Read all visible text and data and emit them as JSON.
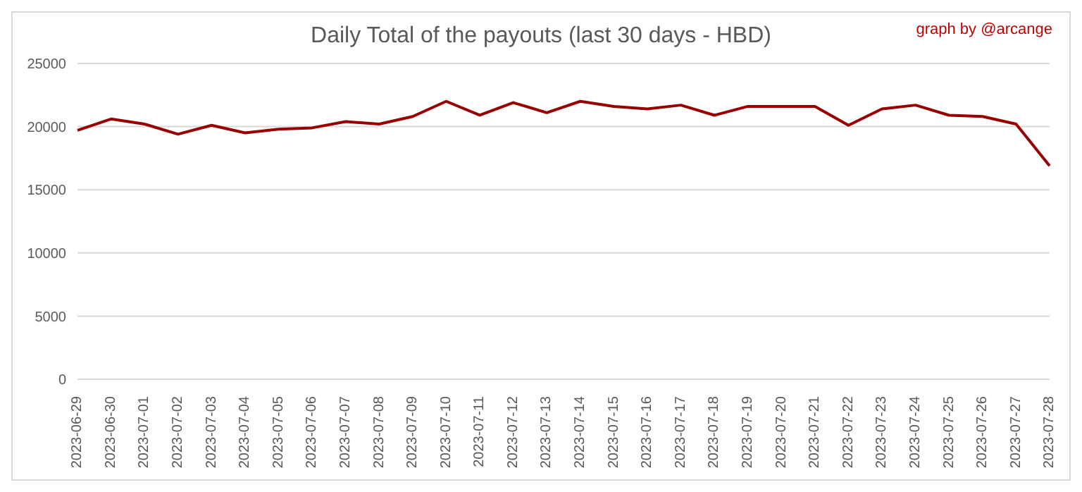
{
  "chart_data": {
    "type": "line",
    "title": "Daily Total of the payouts (last 30 days - HBD)",
    "annotations": [
      "graph by @arcange"
    ],
    "categories": [
      "2023-06-29",
      "2023-06-30",
      "2023-07-01",
      "2023-07-02",
      "2023-07-03",
      "2023-07-04",
      "2023-07-05",
      "2023-07-06",
      "2023-07-07",
      "2023-07-08",
      "2023-07-09",
      "2023-07-10",
      "2023-07-11",
      "2023-07-12",
      "2023-07-13",
      "2023-07-14",
      "2023-07-15",
      "2023-07-16",
      "2023-07-17",
      "2023-07-18",
      "2023-07-19",
      "2023-07-20",
      "2023-07-21",
      "2023-07-22",
      "2023-07-23",
      "2023-07-24",
      "2023-07-25",
      "2023-07-26",
      "2023-07-27",
      "2023-07-28"
    ],
    "series": [
      {
        "color": "#990000",
        "values": [
          19700,
          20600,
          20200,
          19400,
          20100,
          19500,
          19800,
          19900,
          20400,
          20200,
          20800,
          22000,
          20900,
          21900,
          21100,
          22000,
          21600,
          21400,
          21700,
          20900,
          21600,
          21600,
          21600,
          20100,
          21400,
          21700,
          20900,
          20800,
          20200,
          16900
        ]
      }
    ],
    "ylim": [
      0,
      25000
    ],
    "yticks": [
      0,
      5000,
      10000,
      15000,
      20000,
      25000
    ],
    "grid": "y",
    "legend": false,
    "marker": "none",
    "line_style": "solid"
  }
}
